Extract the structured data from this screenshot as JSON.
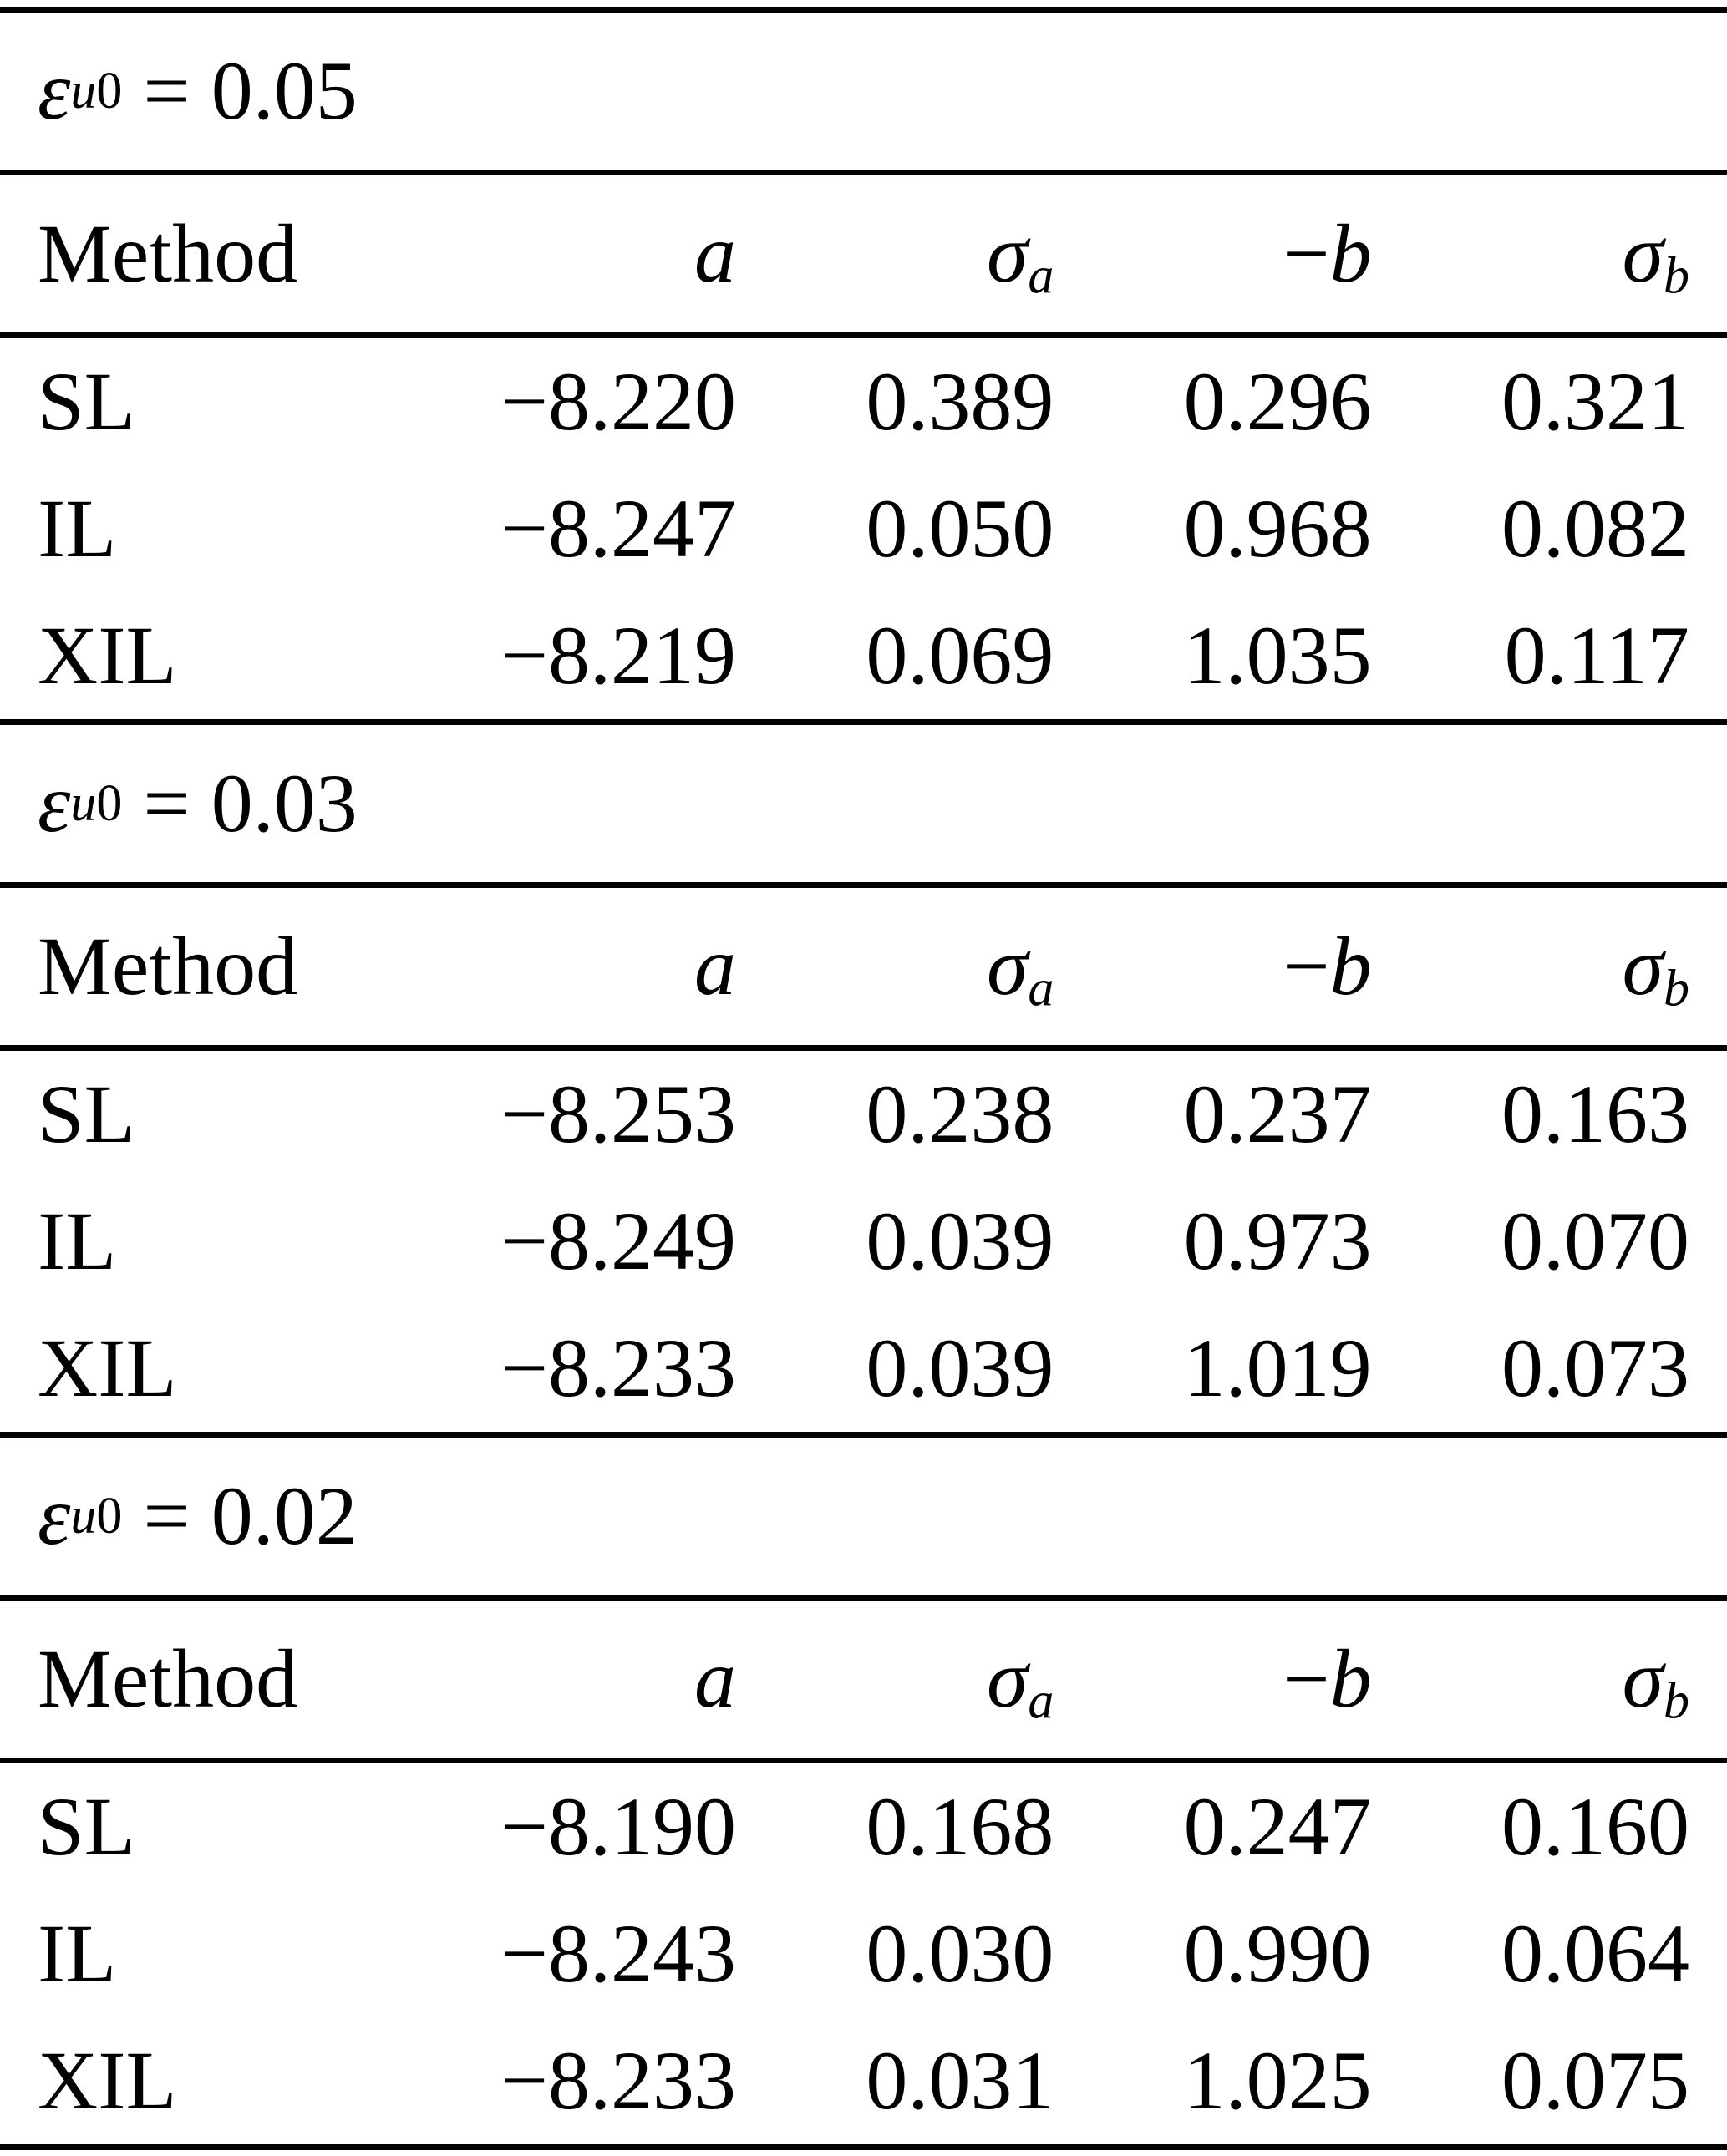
{
  "page": {
    "background": "#ffffff",
    "text_color": "#000000",
    "rule_color": "#000000"
  },
  "col_headers": {
    "method": "Method",
    "a": "a",
    "sigma": "σ",
    "sub_a": "a",
    "minus": "−",
    "b": "b",
    "sub_b": "b"
  },
  "sections": [
    {
      "param": {
        "epsilon": "ε",
        "sub_italic": "u",
        "sub_digit": "0",
        "value": " = 0.05"
      },
      "rows": [
        {
          "method": "SL",
          "a": "−8.220",
          "sigma_a": "0.389",
          "neg_b": "0.296",
          "sigma_b": "0.321"
        },
        {
          "method": "IL",
          "a": "−8.247",
          "sigma_a": "0.050",
          "neg_b": "0.968",
          "sigma_b": "0.082"
        },
        {
          "method": "XIL",
          "a": "−8.219",
          "sigma_a": "0.069",
          "neg_b": "1.035",
          "sigma_b": "0.117"
        }
      ]
    },
    {
      "param": {
        "epsilon": "ε",
        "sub_italic": "u",
        "sub_digit": "0",
        "value": " = 0.03"
      },
      "rows": [
        {
          "method": "SL",
          "a": "−8.253",
          "sigma_a": "0.238",
          "neg_b": "0.237",
          "sigma_b": "0.163"
        },
        {
          "method": "IL",
          "a": "−8.249",
          "sigma_a": "0.039",
          "neg_b": "0.973",
          "sigma_b": "0.070"
        },
        {
          "method": "XIL",
          "a": "−8.233",
          "sigma_a": "0.039",
          "neg_b": "1.019",
          "sigma_b": "0.073"
        }
      ]
    },
    {
      "param": {
        "epsilon": "ε",
        "sub_italic": "u",
        "sub_digit": "0",
        "value": " = 0.02"
      },
      "rows": [
        {
          "method": "SL",
          "a": "−8.190",
          "sigma_a": "0.168",
          "neg_b": "0.247",
          "sigma_b": "0.160"
        },
        {
          "method": "IL",
          "a": "−8.243",
          "sigma_a": "0.030",
          "neg_b": "0.990",
          "sigma_b": "0.064"
        },
        {
          "method": "XIL",
          "a": "−8.233",
          "sigma_a": "0.031",
          "neg_b": "1.025",
          "sigma_b": "0.075"
        }
      ]
    }
  ]
}
